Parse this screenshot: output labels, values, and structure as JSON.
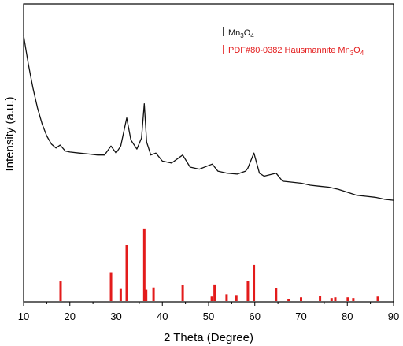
{
  "chart_data": {
    "type": "line",
    "xlabel": "2 Theta (Degree)",
    "ylabel": "Intensity (a.u.)",
    "xlim": [
      10,
      90
    ],
    "x_ticks": [
      "10",
      "20",
      "30",
      "40",
      "50",
      "60",
      "70",
      "80",
      "90"
    ],
    "y_ticks_shown": false,
    "legend_position": "top-right",
    "series": [
      {
        "name": "Mn3O4",
        "legend_text": "Mn",
        "legend_sub1": "3",
        "legend_mid": "O",
        "legend_sub2": "4",
        "color": "#111111",
        "kind": "xrd-pattern",
        "x": [
          10,
          10.5,
          11,
          11.5,
          12,
          12.5,
          13,
          14,
          15,
          16,
          17,
          17.9,
          19,
          20,
          22,
          24,
          26,
          27.5,
          28.9,
          30,
          31,
          32.3,
          33.2,
          34.5,
          35.5,
          36.1,
          36.6,
          37.5,
          38.6,
          40,
          42,
          44.4,
          46,
          48,
          50.8,
          52,
          54,
          56.2,
          58,
          58.5,
          59.8,
          61,
          62,
          64.6,
          66,
          68,
          70,
          72,
          74,
          76,
          78,
          80,
          82,
          84,
          86,
          88,
          90
        ],
        "y": [
          100,
          93,
          86,
          80,
          74,
          69,
          64,
          56,
          50,
          46,
          44,
          45.5,
          42.5,
          42,
          41.5,
          41,
          40.5,
          40.5,
          45,
          41.5,
          45,
          59,
          48,
          43.5,
          49,
          66,
          47,
          40.5,
          41.5,
          37.5,
          36.5,
          40.5,
          34.5,
          33.5,
          36,
          32.5,
          31.5,
          31,
          32.5,
          34,
          41.5,
          31.5,
          30,
          31.5,
          27.5,
          27,
          26.5,
          25.5,
          25,
          24.5,
          23.5,
          22,
          20.5,
          20,
          19.5,
          18.5,
          18
        ]
      },
      {
        "name": "PDF#80-0382 Hausmannite Mn3O4",
        "legend_text": "PDF#80-0382 Hausmannite Mn",
        "legend_sub1": "3",
        "legend_mid": "O",
        "legend_sub2": "4",
        "color": "#e31b1b",
        "kind": "reference-sticks",
        "x": [
          18.0,
          28.9,
          31.0,
          32.3,
          36.1,
          36.5,
          38.1,
          44.4,
          50.7,
          51.3,
          53.9,
          56.0,
          58.5,
          59.8,
          64.6,
          67.3,
          70.0,
          74.1,
          76.6,
          77.4,
          80.1,
          81.3,
          86.6
        ],
        "y": [
          26,
          38,
          16,
          74,
          96,
          15,
          18,
          21,
          6,
          22,
          9,
          8,
          27,
          48,
          17,
          3,
          5,
          7,
          4,
          5,
          5,
          4,
          6
        ]
      }
    ]
  }
}
